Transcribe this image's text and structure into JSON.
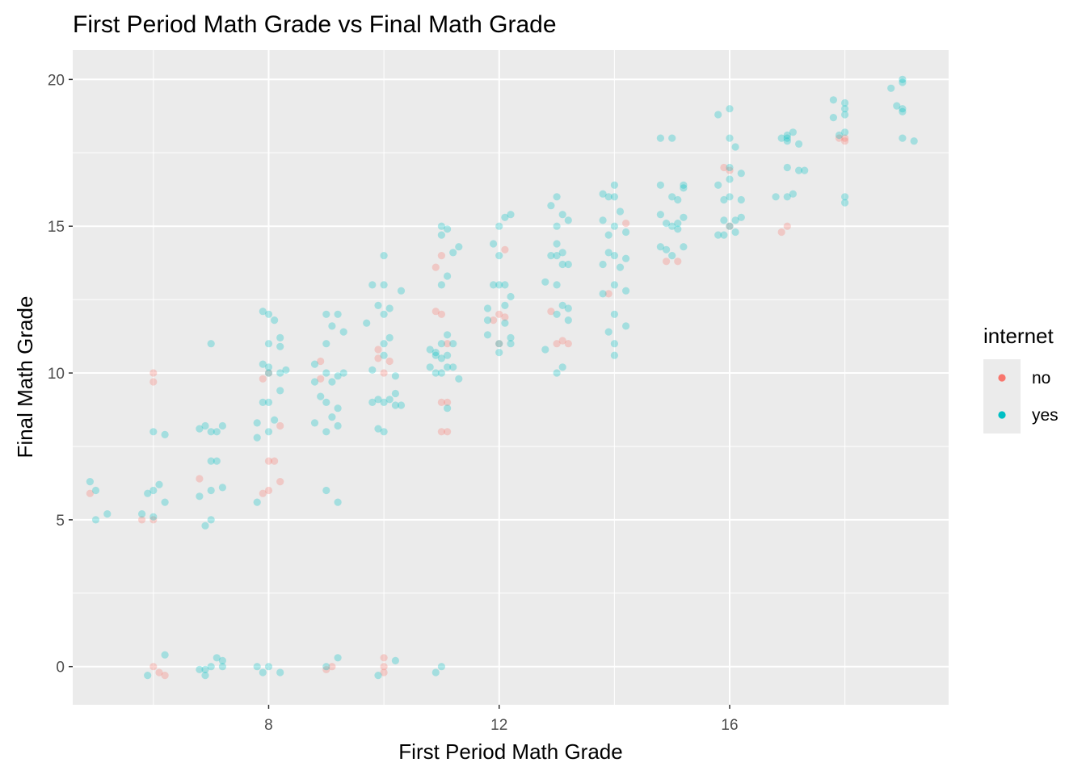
{
  "chart_data": {
    "type": "scatter",
    "title": "First Period Math Grade vs Final Math Grade",
    "xlabel": "First Period Math Grade",
    "ylabel": "Final Math Grade",
    "xlim": [
      4.6,
      19.8
    ],
    "ylim": [
      -1.3,
      21.0
    ],
    "x_ticks": [
      8,
      12,
      16
    ],
    "y_ticks": [
      0,
      5,
      10,
      15,
      20
    ],
    "x_minor_ticks": [
      6,
      10,
      14,
      18
    ],
    "y_minor_ticks": [
      2.5,
      7.5,
      12.5,
      17.5
    ],
    "grid": true,
    "panel_background": "#ebebeb",
    "legend": {
      "title": "internet",
      "position": "right",
      "entries": [
        {
          "label": "no",
          "color": "#f8766d"
        },
        {
          "label": "yes",
          "color": "#00bfc4"
        }
      ]
    },
    "point_alpha": 0.3,
    "series": [
      {
        "name": "no",
        "color": "#f8766d",
        "points": [
          [
            4.9,
            5.9
          ],
          [
            5.8,
            5.0
          ],
          [
            6.0,
            10.0
          ],
          [
            6.0,
            9.7
          ],
          [
            6.0,
            5.0
          ],
          [
            6.0,
            0.0
          ],
          [
            6.1,
            -0.2
          ],
          [
            6.2,
            -0.3
          ],
          [
            6.8,
            6.4
          ],
          [
            7.9,
            9.8
          ],
          [
            8.0,
            10.0
          ],
          [
            8.0,
            7.0
          ],
          [
            8.0,
            6.0
          ],
          [
            7.9,
            5.9
          ],
          [
            8.1,
            7.0
          ],
          [
            8.2,
            8.2
          ],
          [
            8.2,
            6.3
          ],
          [
            8.9,
            9.8
          ],
          [
            8.9,
            10.4
          ],
          [
            9.1,
            0.0
          ],
          [
            9.0,
            -0.1
          ],
          [
            9.9,
            10.8
          ],
          [
            10.0,
            10.0
          ],
          [
            10.1,
            10.4
          ],
          [
            10.0,
            0.0
          ],
          [
            10.0,
            0.3
          ],
          [
            10.0,
            -0.2
          ],
          [
            9.9,
            10.5
          ],
          [
            10.9,
            13.6
          ],
          [
            10.9,
            12.1
          ],
          [
            11.0,
            14.0
          ],
          [
            11.0,
            12.0
          ],
          [
            11.0,
            9.0
          ],
          [
            11.0,
            8.0
          ],
          [
            11.1,
            8.0
          ],
          [
            11.1,
            9.0
          ],
          [
            11.1,
            11.0
          ],
          [
            11.9,
            11.8
          ],
          [
            12.0,
            12.0
          ],
          [
            12.0,
            11.0
          ],
          [
            12.1,
            14.2
          ],
          [
            12.1,
            11.9
          ],
          [
            12.9,
            12.1
          ],
          [
            13.0,
            11.0
          ],
          [
            13.1,
            11.1
          ],
          [
            13.2,
            11.0
          ],
          [
            13.9,
            12.7
          ],
          [
            14.2,
            15.1
          ],
          [
            14.9,
            13.8
          ],
          [
            15.1,
            13.8
          ],
          [
            15.9,
            17.0
          ],
          [
            16.0,
            15.0
          ],
          [
            16.0,
            16.9
          ],
          [
            16.9,
            14.8
          ],
          [
            17.0,
            15.0
          ],
          [
            17.9,
            18.0
          ],
          [
            18.0,
            18.0
          ],
          [
            18.0,
            17.9
          ]
        ]
      },
      {
        "name": "yes",
        "color": "#00bfc4",
        "points": [
          [
            4.9,
            6.3
          ],
          [
            5.0,
            6.0
          ],
          [
            5.0,
            5.0
          ],
          [
            5.2,
            5.2
          ],
          [
            5.8,
            5.2
          ],
          [
            5.9,
            5.9
          ],
          [
            6.0,
            6.0
          ],
          [
            6.0,
            8.0
          ],
          [
            6.0,
            5.1
          ],
          [
            6.1,
            6.2
          ],
          [
            6.2,
            7.9
          ],
          [
            6.2,
            5.6
          ],
          [
            5.9,
            -0.3
          ],
          [
            6.2,
            0.4
          ],
          [
            6.8,
            8.1
          ],
          [
            6.8,
            5.8
          ],
          [
            6.9,
            8.2
          ],
          [
            6.9,
            4.8
          ],
          [
            7.0,
            11.0
          ],
          [
            7.0,
            8.0
          ],
          [
            7.0,
            7.0
          ],
          [
            7.0,
            6.0
          ],
          [
            7.0,
            5.0
          ],
          [
            7.1,
            8.0
          ],
          [
            7.1,
            7.0
          ],
          [
            7.2,
            8.2
          ],
          [
            7.2,
            6.1
          ],
          [
            6.8,
            -0.1
          ],
          [
            6.9,
            -0.3
          ],
          [
            7.0,
            0.0
          ],
          [
            7.1,
            0.3
          ],
          [
            7.2,
            0.2
          ],
          [
            6.9,
            -0.1
          ],
          [
            7.2,
            0.0
          ],
          [
            7.8,
            8.3
          ],
          [
            7.8,
            7.8
          ],
          [
            7.8,
            5.6
          ],
          [
            7.9,
            10.3
          ],
          [
            7.9,
            9.0
          ],
          [
            7.9,
            12.1
          ],
          [
            8.0,
            12.0
          ],
          [
            8.0,
            11.0
          ],
          [
            8.0,
            10.0
          ],
          [
            8.0,
            9.0
          ],
          [
            8.0,
            8.0
          ],
          [
            8.1,
            11.8
          ],
          [
            8.1,
            8.4
          ],
          [
            8.2,
            10.0
          ],
          [
            8.2,
            9.4
          ],
          [
            8.2,
            11.2
          ],
          [
            8.2,
            10.9
          ],
          [
            8.3,
            10.1
          ],
          [
            8.0,
            10.2
          ],
          [
            7.8,
            0.0
          ],
          [
            7.9,
            -0.2
          ],
          [
            8.0,
            0.0
          ],
          [
            8.2,
            -0.2
          ],
          [
            8.8,
            10.3
          ],
          [
            8.8,
            9.7
          ],
          [
            8.8,
            8.3
          ],
          [
            8.9,
            9.2
          ],
          [
            9.0,
            12.0
          ],
          [
            9.0,
            11.0
          ],
          [
            9.0,
            10.0
          ],
          [
            9.0,
            9.0
          ],
          [
            9.0,
            8.0
          ],
          [
            9.0,
            6.0
          ],
          [
            9.1,
            8.5
          ],
          [
            9.1,
            9.7
          ],
          [
            9.1,
            11.6
          ],
          [
            9.2,
            12.0
          ],
          [
            9.2,
            9.9
          ],
          [
            9.2,
            8.8
          ],
          [
            9.2,
            8.2
          ],
          [
            9.2,
            5.6
          ],
          [
            9.3,
            11.4
          ],
          [
            9.3,
            10.0
          ],
          [
            9.0,
            0.0
          ],
          [
            9.2,
            0.3
          ],
          [
            9.7,
            11.7
          ],
          [
            9.8,
            13.0
          ],
          [
            9.8,
            10.1
          ],
          [
            9.8,
            9.0
          ],
          [
            9.9,
            12.3
          ],
          [
            9.9,
            8.1
          ],
          [
            10.0,
            14.0
          ],
          [
            10.0,
            13.0
          ],
          [
            10.0,
            12.0
          ],
          [
            10.0,
            11.0
          ],
          [
            10.0,
            9.0
          ],
          [
            10.0,
            8.0
          ],
          [
            10.1,
            9.1
          ],
          [
            10.1,
            11.2
          ],
          [
            10.1,
            12.2
          ],
          [
            10.2,
            9.9
          ],
          [
            10.2,
            9.3
          ],
          [
            10.2,
            8.9
          ],
          [
            10.3,
            12.8
          ],
          [
            10.3,
            8.9
          ],
          [
            10.0,
            10.6
          ],
          [
            9.9,
            9.1
          ],
          [
            9.9,
            -0.3
          ],
          [
            10.2,
            0.2
          ],
          [
            10.8,
            10.8
          ],
          [
            10.8,
            10.2
          ],
          [
            10.9,
            10.7
          ],
          [
            10.9,
            10.0
          ],
          [
            11.0,
            15.0
          ],
          [
            11.0,
            14.7
          ],
          [
            11.0,
            13.0
          ],
          [
            11.0,
            11.0
          ],
          [
            11.0,
            10.0
          ],
          [
            11.1,
            14.9
          ],
          [
            11.1,
            13.3
          ],
          [
            11.1,
            11.3
          ],
          [
            11.1,
            10.6
          ],
          [
            11.1,
            10.2
          ],
          [
            11.1,
            8.8
          ],
          [
            11.2,
            14.1
          ],
          [
            11.2,
            11.0
          ],
          [
            11.2,
            10.2
          ],
          [
            11.3,
            14.3
          ],
          [
            11.3,
            9.8
          ],
          [
            10.9,
            10.6
          ],
          [
            11.0,
            10.5
          ],
          [
            10.9,
            -0.2
          ],
          [
            11.0,
            0.0
          ],
          [
            11.8,
            12.2
          ],
          [
            11.8,
            11.8
          ],
          [
            11.8,
            11.3
          ],
          [
            11.9,
            14.4
          ],
          [
            11.9,
            13.0
          ],
          [
            12.0,
            15.0
          ],
          [
            12.0,
            14.0
          ],
          [
            12.0,
            13.0
          ],
          [
            12.0,
            11.0
          ],
          [
            12.0,
            10.7
          ],
          [
            12.1,
            15.3
          ],
          [
            12.1,
            13.0
          ],
          [
            12.1,
            12.3
          ],
          [
            12.2,
            15.4
          ],
          [
            12.2,
            12.6
          ],
          [
            12.2,
            11.2
          ],
          [
            12.2,
            11.0
          ],
          [
            12.1,
            11.7
          ],
          [
            12.8,
            10.8
          ],
          [
            12.8,
            13.1
          ],
          [
            12.9,
            14.0
          ],
          [
            12.9,
            15.7
          ],
          [
            13.0,
            16.0
          ],
          [
            13.0,
            15.0
          ],
          [
            13.0,
            14.0
          ],
          [
            13.0,
            13.0
          ],
          [
            13.0,
            12.0
          ],
          [
            13.0,
            10.0
          ],
          [
            13.1,
            15.4
          ],
          [
            13.1,
            14.1
          ],
          [
            13.1,
            13.7
          ],
          [
            13.1,
            12.3
          ],
          [
            13.1,
            10.2
          ],
          [
            13.2,
            12.2
          ],
          [
            13.2,
            11.8
          ],
          [
            13.2,
            13.7
          ],
          [
            13.2,
            15.2
          ],
          [
            13.0,
            14.4
          ],
          [
            13.8,
            16.1
          ],
          [
            13.8,
            15.2
          ],
          [
            13.8,
            13.7
          ],
          [
            13.8,
            12.7
          ],
          [
            13.9,
            14.7
          ],
          [
            13.9,
            14.1
          ],
          [
            13.9,
            11.4
          ],
          [
            14.0,
            16.0
          ],
          [
            14.0,
            15.0
          ],
          [
            14.0,
            14.0
          ],
          [
            14.0,
            13.0
          ],
          [
            14.0,
            12.0
          ],
          [
            14.0,
            11.0
          ],
          [
            14.0,
            10.6
          ],
          [
            14.0,
            16.4
          ],
          [
            14.1,
            15.5
          ],
          [
            14.1,
            13.6
          ],
          [
            14.2,
            14.8
          ],
          [
            14.2,
            13.9
          ],
          [
            14.2,
            12.8
          ],
          [
            14.2,
            11.6
          ],
          [
            13.9,
            16.0
          ],
          [
            14.8,
            18.0
          ],
          [
            14.8,
            16.4
          ],
          [
            14.8,
            15.4
          ],
          [
            14.8,
            14.3
          ],
          [
            14.9,
            15.1
          ],
          [
            14.9,
            14.2
          ],
          [
            15.0,
            18.0
          ],
          [
            15.0,
            16.0
          ],
          [
            15.0,
            15.0
          ],
          [
            15.0,
            14.0
          ],
          [
            15.1,
            15.1
          ],
          [
            15.1,
            14.9
          ],
          [
            15.2,
            16.3
          ],
          [
            15.2,
            15.3
          ],
          [
            15.2,
            14.3
          ],
          [
            15.2,
            16.4
          ],
          [
            15.1,
            15.9
          ],
          [
            15.8,
            18.8
          ],
          [
            15.8,
            16.4
          ],
          [
            15.8,
            14.7
          ],
          [
            15.9,
            15.9
          ],
          [
            15.9,
            15.2
          ],
          [
            15.9,
            14.7
          ],
          [
            16.0,
            19.0
          ],
          [
            16.0,
            18.0
          ],
          [
            16.0,
            17.0
          ],
          [
            16.0,
            16.0
          ],
          [
            16.0,
            15.0
          ],
          [
            16.0,
            16.6
          ],
          [
            16.1,
            17.7
          ],
          [
            16.1,
            15.2
          ],
          [
            16.1,
            14.8
          ],
          [
            16.2,
            16.8
          ],
          [
            16.2,
            15.9
          ],
          [
            16.2,
            15.3
          ],
          [
            16.8,
            16.0
          ],
          [
            16.9,
            18.0
          ],
          [
            17.0,
            18.0
          ],
          [
            17.0,
            17.0
          ],
          [
            17.0,
            16.0
          ],
          [
            17.0,
            17.9
          ],
          [
            17.0,
            18.1
          ],
          [
            17.1,
            18.2
          ],
          [
            17.1,
            16.1
          ],
          [
            17.2,
            17.8
          ],
          [
            17.2,
            16.9
          ],
          [
            17.3,
            16.9
          ],
          [
            17.8,
            19.3
          ],
          [
            17.8,
            18.7
          ],
          [
            17.9,
            18.1
          ],
          [
            18.0,
            19.0
          ],
          [
            18.0,
            16.0
          ],
          [
            18.0,
            19.2
          ],
          [
            18.0,
            18.8
          ],
          [
            18.0,
            18.2
          ],
          [
            18.0,
            15.8
          ],
          [
            18.8,
            19.7
          ],
          [
            18.9,
            19.1
          ],
          [
            19.0,
            20.0
          ],
          [
            19.0,
            19.0
          ],
          [
            19.0,
            18.0
          ],
          [
            19.0,
            19.9
          ],
          [
            19.0,
            18.9
          ],
          [
            19.2,
            17.9
          ]
        ]
      }
    ]
  }
}
